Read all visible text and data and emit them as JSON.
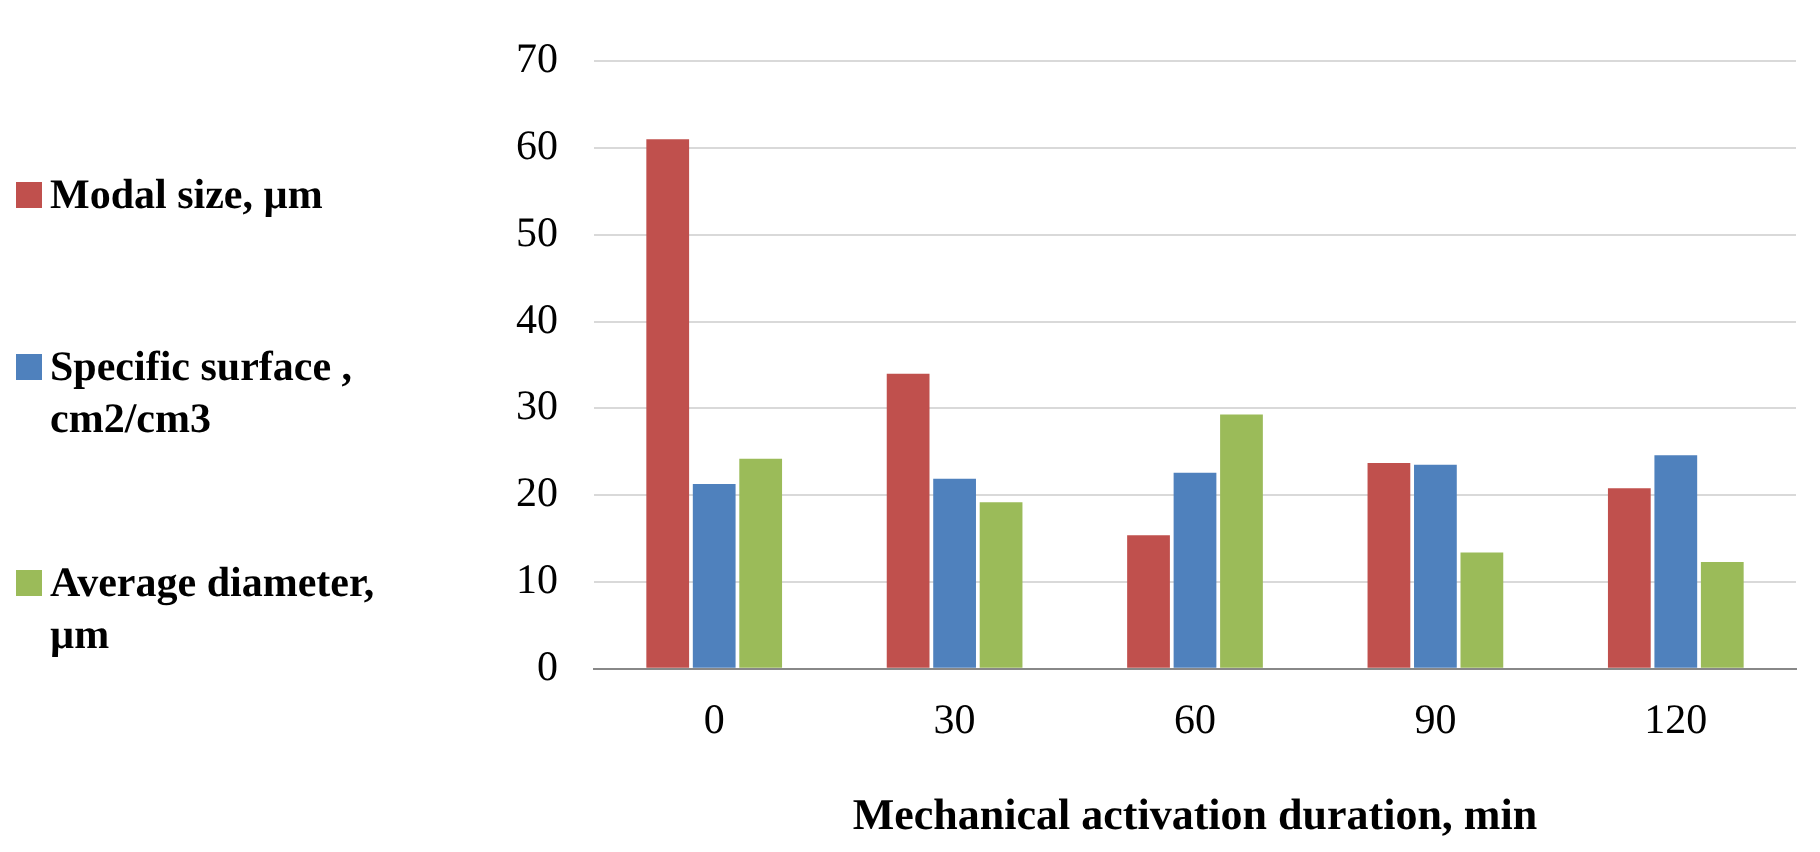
{
  "chart_data": {
    "type": "bar",
    "xlabel": "Mechanical activation duration, min",
    "categories": [
      "0",
      "30",
      "60",
      "90",
      "120"
    ],
    "series": [
      {
        "name": "Modal size, µm",
        "color": "#c0504d",
        "values": [
          61,
          34,
          15.4,
          23.7,
          20.8
        ]
      },
      {
        "name": "Specific surface , cm2/cm3",
        "color": "#4f81bd",
        "values": [
          21.3,
          21.9,
          22.6,
          23.5,
          24.6
        ]
      },
      {
        "name": "Average diameter, µm",
        "color": "#9bbb59",
        "values": [
          24.2,
          19.2,
          29.3,
          13.4,
          12.3
        ]
      }
    ],
    "ylim": [
      0,
      70
    ],
    "yticks": [
      0,
      10,
      20,
      30,
      40,
      50,
      60,
      70
    ],
    "grid": "y",
    "legend": "left"
  }
}
